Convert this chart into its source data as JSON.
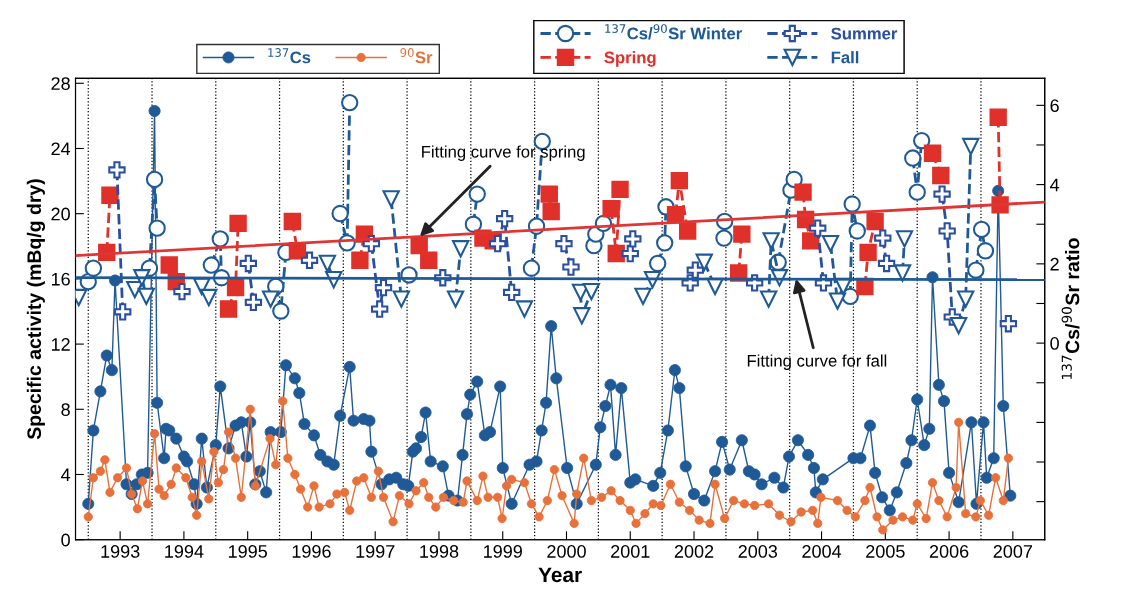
{
  "chart_data": {
    "type": "line",
    "xlabel": "Year",
    "ylabel": "Specific activity (mBq/g dry)",
    "y2label": "$^{137}$Cs/$^{90}$Sr ratio",
    "xlim": [
      1992.8,
      2008.0
    ],
    "ylim": [
      0,
      28.3
    ],
    "y2lim": [
      -4.96,
      6.68
    ],
    "xticks": [
      {
        "value": 1993.5,
        "label": "1993"
      },
      {
        "value": 1994.5,
        "label": "1994"
      },
      {
        "value": 1995.5,
        "label": "1995"
      },
      {
        "value": 1996.5,
        "label": "1996"
      },
      {
        "value": 1997.5,
        "label": "1997"
      },
      {
        "value": 1998.5,
        "label": "1998"
      },
      {
        "value": 1999.5,
        "label": "1999"
      },
      {
        "value": 2000.5,
        "label": "2000"
      },
      {
        "value": 2001.5,
        "label": "2001"
      },
      {
        "value": 2002.5,
        "label": "2002"
      },
      {
        "value": 2003.5,
        "label": "2003"
      },
      {
        "value": 2004.5,
        "label": "2004"
      },
      {
        "value": 2005.5,
        "label": "2005"
      },
      {
        "value": 2006.5,
        "label": "2006"
      },
      {
        "value": 2007.5,
        "label": "2007"
      }
    ],
    "yticks": [
      0,
      4,
      8,
      12,
      16,
      20,
      24,
      28
    ],
    "y2ticks": [
      {
        "value": -4,
        "label": null
      },
      {
        "value": -3,
        "label": null
      },
      {
        "value": -2,
        "label": null
      },
      {
        "value": -1,
        "label": null
      },
      0,
      {
        "value": 1,
        "label": null
      },
      2,
      {
        "value": 3,
        "label": null
      },
      4,
      {
        "value": 5,
        "label": null
      },
      6
    ],
    "legend": "top",
    "ref_lines": [
      {
        "axis": "x",
        "value": 1993,
        "color": "#000000",
        "line_style": "dotted"
      },
      {
        "axis": "x",
        "value": 1994,
        "color": "#000000",
        "line_style": "dotted"
      },
      {
        "axis": "x",
        "value": 1995,
        "color": "#000000",
        "line_style": "dotted"
      },
      {
        "axis": "x",
        "value": 1996,
        "color": "#000000",
        "line_style": "dotted"
      },
      {
        "axis": "x",
        "value": 1997,
        "color": "#000000",
        "line_style": "dotted"
      },
      {
        "axis": "x",
        "value": 1998,
        "color": "#000000",
        "line_style": "dotted"
      },
      {
        "axis": "x",
        "value": 1999,
        "color": "#000000",
        "line_style": "dotted"
      },
      {
        "axis": "x",
        "value": 2000,
        "color": "#000000",
        "line_style": "dotted"
      },
      {
        "axis": "x",
        "value": 2001,
        "color": "#000000",
        "line_style": "dotted"
      },
      {
        "axis": "x",
        "value": 2002,
        "color": "#000000",
        "line_style": "dotted"
      },
      {
        "axis": "x",
        "value": 2003,
        "color": "#000000",
        "line_style": "dotted"
      },
      {
        "axis": "x",
        "value": 2004,
        "color": "#000000",
        "line_style": "dotted"
      },
      {
        "axis": "x",
        "value": 2005,
        "color": "#000000",
        "line_style": "dotted"
      },
      {
        "axis": "x",
        "value": 2006,
        "color": "#000000",
        "line_style": "dotted"
      },
      {
        "axis": "x",
        "value": 2007,
        "color": "#000000",
        "line_style": "dotted"
      }
    ],
    "annotations": [
      {
        "text": "Fitting curve for spring",
        "x": 1998.2,
        "y": 18.6
      },
      {
        "text": "Fitting curve for fall",
        "x": 2004.1,
        "y": 16.0
      }
    ],
    "series": [
      {
        "name": "$^{137}$Cs",
        "color": "#1f5a96",
        "marker": "circle",
        "line_style": "solid",
        "x": [
          1993.0,
          1993.08,
          1993.19,
          1993.29,
          1993.37,
          1993.42,
          1993.6,
          1993.68,
          1993.76,
          1993.84,
          1993.93,
          1994.04,
          1994.08,
          1994.19,
          1994.22,
          1994.27,
          1994.38,
          1994.5,
          1994.55,
          1994.66,
          1994.7,
          1994.78,
          1994.86,
          1995.0,
          1995.07,
          1995.2,
          1995.31,
          1995.4,
          1995.48,
          1995.54,
          1995.62,
          1995.69,
          1995.79,
          1995.86,
          1996.02,
          1996.1,
          1996.24,
          1996.31,
          1996.39,
          1996.54,
          1996.64,
          1996.75,
          1996.85,
          1996.95,
          1997.1,
          1997.16,
          1997.32,
          1997.41,
          1997.44,
          1997.6,
          1997.72,
          1997.83,
          1997.94,
          1998.02,
          1998.09,
          1998.14,
          1998.22,
          1998.29,
          1998.37,
          1998.56,
          1998.65,
          1998.79,
          1998.87,
          1998.94,
          1998.99,
          1999.1,
          1999.22,
          1999.3,
          1999.46,
          1999.5,
          1999.64,
          1999.92,
          2000.03,
          2000.11,
          2000.18,
          2000.26,
          2000.34,
          2000.51,
          2000.66,
          2000.96,
          2001.03,
          2001.11,
          2001.19,
          2001.27,
          2001.36,
          2001.5,
          2001.58,
          2001.86,
          2001.97,
          2002.09,
          2002.2,
          2002.27,
          2002.37,
          2002.5,
          2002.66,
          2002.83,
          2002.94,
          2003.06,
          2003.25,
          2003.36,
          2003.45,
          2003.56,
          2003.76,
          2003.9,
          2003.99,
          2004.13,
          2004.29,
          2004.38,
          2004.41,
          2004.52,
          2005.0,
          2005.11,
          2005.26,
          2005.34,
          2005.45,
          2005.57,
          2005.68,
          2005.83,
          2005.91,
          2006.0,
          2006.11,
          2006.19,
          2006.24,
          2006.34,
          2006.42,
          2006.5,
          2006.65,
          2006.85,
          2006.93,
          2007.04,
          2007.09,
          2007.2,
          2007.27,
          2007.35,
          2007.46
        ],
        "values": [
          2.2,
          6.7,
          9.1,
          11.3,
          10.4,
          15.9,
          3.4,
          2.8,
          3.4,
          4.0,
          4.1,
          26.3,
          8.4,
          5.0,
          6.8,
          6.7,
          6.2,
          5.1,
          4.8,
          3.4,
          2.2,
          6.2,
          3.2,
          5.8,
          9.4,
          5.6,
          7.0,
          7.2,
          5.1,
          7.2,
          3.4,
          4.2,
          2.9,
          6.6,
          6.6,
          10.7,
          9.9,
          9.0,
          7.1,
          6.4,
          5.2,
          4.8,
          4.6,
          7.6,
          10.6,
          7.3,
          7.4,
          7.3,
          5.4,
          3.4,
          3.7,
          3.8,
          3.4,
          3.3,
          5.4,
          5.6,
          6.3,
          7.8,
          4.8,
          4.5,
          2.7,
          2.4,
          5.2,
          7.7,
          8.9,
          9.7,
          6.4,
          6.6,
          9.4,
          4.4,
          2.2,
          4.6,
          4.8,
          6.7,
          8.4,
          13.1,
          9.9,
          4.4,
          2.2,
          4.6,
          6.9,
          8.2,
          9.5,
          5.2,
          9.3,
          3.5,
          3.7,
          3.3,
          4.1,
          6.7,
          10.4,
          9.3,
          4.5,
          2.8,
          2.4,
          4.2,
          6.0,
          4.3,
          6.1,
          4.2,
          4.0,
          3.4,
          3.8,
          3.2,
          5.1,
          6.1,
          5.2,
          4.4,
          2.9,
          3.7,
          5.0,
          5.0,
          7.0,
          4.1,
          2.6,
          1.8,
          2.9,
          4.7,
          6.1,
          8.6,
          5.8,
          6.8,
          16.1,
          9.5,
          8.5,
          4.1,
          2.3,
          7.2,
          2.2,
          7.2,
          3.8,
          5.0,
          21.4,
          8.2,
          2.7
        ]
      },
      {
        "name": "$^{90}$Sr",
        "color": "#e8703a",
        "marker": "circle",
        "line_style": "solid",
        "x": [
          1993.0,
          1993.08,
          1993.19,
          1993.26,
          1993.34,
          1993.46,
          1993.6,
          1993.68,
          1993.77,
          1993.85,
          1993.93,
          1994.04,
          1994.11,
          1994.19,
          1994.3,
          1994.38,
          1994.53,
          1994.63,
          1994.7,
          1994.78,
          1994.89,
          1994.97,
          1995.04,
          1995.12,
          1995.2,
          1995.31,
          1995.4,
          1995.54,
          1995.62,
          1995.85,
          1995.94,
          1996.05,
          1996.13,
          1996.24,
          1996.33,
          1996.44,
          1996.54,
          1996.62,
          1996.79,
          1996.9,
          1997.02,
          1997.1,
          1997.21,
          1997.32,
          1997.44,
          1997.55,
          1997.63,
          1997.78,
          1997.88,
          1998.03,
          1998.14,
          1998.26,
          1998.34,
          1998.45,
          1998.57,
          1998.73,
          1998.88,
          1998.94,
          1999.1,
          1999.19,
          1999.27,
          1999.42,
          1999.49,
          1999.56,
          1999.64,
          1999.84,
          1999.95,
          2000.07,
          2000.2,
          2000.31,
          2000.43,
          2000.62,
          2000.66,
          2000.77,
          2000.89,
          2001.05,
          2001.2,
          2001.34,
          2001.5,
          2001.59,
          2001.73,
          2001.86,
          2001.98,
          2002.13,
          2002.27,
          2002.43,
          2002.58,
          2002.75,
          2002.83,
          2002.98,
          2003.12,
          2003.29,
          2003.45,
          2003.67,
          2003.84,
          2004.02,
          2004.18,
          2004.36,
          2004.44,
          2004.49,
          2004.75,
          2004.9,
          2005.03,
          2005.18,
          2005.26,
          2005.37,
          2005.46,
          2005.62,
          2005.77,
          2005.93,
          2006.0,
          2006.14,
          2006.24,
          2006.34,
          2006.47,
          2006.61,
          2006.65,
          2006.76,
          2006.92,
          2006.99,
          2007.12,
          2007.23,
          2007.35,
          2007.43
        ],
        "values": [
          1.4,
          3.8,
          4.2,
          4.9,
          2.9,
          3.8,
          4.4,
          2.8,
          1.9,
          3.6,
          2.2,
          6.5,
          3.1,
          2.7,
          3.4,
          4.4,
          3.8,
          2.6,
          1.5,
          4.8,
          2.5,
          5.4,
          3.5,
          4.3,
          6.6,
          5.0,
          2.6,
          8.0,
          3.3,
          6.2,
          4.6,
          8.5,
          5.0,
          4.0,
          3.1,
          2.0,
          3.3,
          2.0,
          2.2,
          2.8,
          2.9,
          1.8,
          3.6,
          3.8,
          2.6,
          4.2,
          2.6,
          1.1,
          2.7,
          2.2,
          3.0,
          3.5,
          2.6,
          2.0,
          2.6,
          2.4,
          2.3,
          3.6,
          2.4,
          3.9,
          2.6,
          2.6,
          1.3,
          3.3,
          3.7,
          3.5,
          2.2,
          1.4,
          2.4,
          4.3,
          2.7,
          1.0,
          2.8,
          5.0,
          2.4,
          2.6,
          3.0,
          2.4,
          1.8,
          1.0,
          1.6,
          2.2,
          2.1,
          3.4,
          2.3,
          1.8,
          1.2,
          1.0,
          3.4,
          1.3,
          2.4,
          2.2,
          2.1,
          2.2,
          1.5,
          1.1,
          1.7,
          1.8,
          1.0,
          2.6,
          2.4,
          1.8,
          1.4,
          2.4,
          3.2,
          1.4,
          0.6,
          1.2,
          1.4,
          1.2,
          2.2,
          1.3,
          3.5,
          2.4,
          1.4,
          3.2,
          7.2,
          1.6,
          1.4,
          2.4,
          1.5,
          3.8,
          2.4,
          5.0
        ]
      },
      {
        "name": "$^{137}$Cs/$^{90}$Sr Winter",
        "color": "#1f5a96",
        "axis": "y2",
        "marker": "circle",
        "line_style": "dashed",
        "x": [
          1993.0,
          1993.08,
          1993.5,
          1993.96,
          1994.04,
          1994.08,
          1994.5,
          1994.93,
          1995.07,
          1995.09,
          1995.5,
          1995.94,
          1996.02,
          1996.1,
          1996.5,
          1996.95,
          1997.06,
          1997.1,
          1997.5,
          1998.03,
          1998.5,
          1999.04,
          1999.1,
          1999.5,
          1999.95,
          2000.03,
          2000.12,
          2000.5,
          2000.93,
          2000.96,
          2001.08,
          2001.5,
          2001.93,
          2002.04,
          2002.06,
          2002.5,
          2002.97,
          2002.98,
          2003.4,
          2003.82,
          2004.02,
          2004.07,
          2004.5,
          2004.95,
          2004.98,
          2005.06,
          2005.5,
          2005.93,
          2006.0,
          2006.07,
          2006.5,
          2006.92,
          2007.01,
          2007.07
        ],
        "values": [
          1.55,
          1.89,
          null,
          1.89,
          4.13,
          2.9,
          null,
          1.97,
          2.63,
          1.65,
          null,
          1.43,
          0.81,
          2.29,
          null,
          3.27,
          2.53,
          6.07,
          null,
          1.72,
          null,
          3.0,
          3.76,
          null,
          1.89,
          2.95,
          5.09,
          null,
          2.46,
          2.75,
          3.02,
          null,
          2.01,
          2.53,
          3.44,
          null,
          2.65,
          3.07,
          null,
          2.04,
          3.86,
          4.13,
          null,
          1.18,
          3.51,
          2.83,
          null,
          4.67,
          3.81,
          5.11,
          null,
          1.84,
          2.87,
          2.33
        ]
      },
      {
        "name": "Spring",
        "color": "#e0302a",
        "axis": "y2",
        "marker": "square",
        "line_style": "dashed",
        "x": [
          1993.29,
          1993.34,
          1993.8,
          1994.27,
          1994.38,
          1994.8,
          1995.2,
          1995.31,
          1995.35,
          1995.8,
          1996.2,
          1996.28,
          1996.8,
          1997.26,
          1997.33,
          1997.8,
          1998.19,
          1998.34,
          1998.8,
          1999.19,
          1999.35,
          1999.8,
          2000.23,
          2000.26,
          2000.8,
          2001.2,
          2001.28,
          2001.34,
          2001.8,
          2002.21,
          2002.27,
          2002.4,
          2002.8,
          2003.2,
          2003.25,
          2003.8,
          2004.21,
          2004.25,
          2004.33,
          2004.8,
          2005.18,
          2005.23,
          2005.34,
          2005.8,
          2006.24,
          2006.37,
          2006.8,
          2007.27,
          2007.3
        ],
        "values": [
          2.29,
          3.73,
          null,
          1.97,
          1.55,
          null,
          0.86,
          1.4,
          3.02,
          null,
          3.07,
          2.33,
          null,
          2.09,
          2.75,
          null,
          2.46,
          2.09,
          null,
          2.65,
          2.58,
          null,
          3.76,
          3.32,
          null,
          3.39,
          2.26,
          3.88,
          null,
          3.24,
          4.1,
          2.83,
          null,
          1.77,
          2.75,
          null,
          3.81,
          3.12,
          2.58,
          null,
          1.43,
          2.29,
          3.07,
          null,
          4.79,
          4.23,
          null,
          5.7,
          3.49
        ]
      },
      {
        "name": "Summer",
        "color": "#2a4fa0",
        "axis": "y2",
        "marker": "cross",
        "line_style": "dashed",
        "x": [
          1993.45,
          1993.54,
          1994.0,
          1994.47,
          1995.0,
          1995.51,
          1995.59,
          1996.0,
          1996.47,
          1997.0,
          1997.44,
          1997.57,
          1997.63,
          1998.0,
          1998.56,
          1999.0,
          1999.42,
          1999.53,
          1999.64,
          2000.0,
          2000.46,
          2000.57,
          2001.0,
          2001.5,
          2001.54,
          2002.0,
          2002.44,
          2002.52,
          2003.0,
          2003.45,
          2004.0,
          2004.44,
          2004.53,
          2005.0,
          2005.46,
          2005.52,
          2006.0,
          2006.39,
          2006.47,
          2006.55,
          2007.0,
          2007.43
        ],
        "values": [
          4.37,
          0.79,
          null,
          1.3,
          null,
          2.01,
          1.03,
          null,
          2.09,
          null,
          2.51,
          0.86,
          1.4,
          null,
          1.65,
          null,
          2.51,
          3.14,
          1.28,
          null,
          2.51,
          1.92,
          null,
          2.26,
          2.63,
          null,
          1.52,
          1.84,
          null,
          1.52,
          null,
          2.9,
          1.52,
          null,
          2.65,
          2.01,
          null,
          3.76,
          2.83,
          0.66,
          null,
          0.49
        ]
      },
      {
        "name": "Fall",
        "color": "#1f5a96",
        "axis": "y2",
        "marker": "triangle",
        "line_style": "dashed",
        "x": [
          1992.85,
          1993.3,
          1993.73,
          1993.84,
          1993.91,
          1994.3,
          1994.78,
          1994.89,
          1995.3,
          1995.86,
          1996.3,
          1996.75,
          1996.85,
          1997.3,
          1997.75,
          1997.91,
          1998.3,
          1998.76,
          1998.84,
          1999.3,
          1999.84,
          2000.3,
          2000.72,
          2000.74,
          2000.89,
          2001.3,
          2001.7,
          2001.85,
          2002.3,
          2002.66,
          2002.83,
          2003.3,
          2003.67,
          2003.71,
          2003.84,
          2004.3,
          2004.64,
          2004.75,
          2004.84,
          2005.3,
          2005.77,
          2005.8,
          2006.3,
          2006.65,
          2006.76,
          2006.84
        ],
        "values": [
          1.15,
          null,
          1.35,
          1.65,
          1.18,
          null,
          1.43,
          1.15,
          null,
          1.11,
          null,
          2.01,
          1.6,
          null,
          3.64,
          1.11,
          null,
          1.11,
          2.38,
          null,
          0.86,
          null,
          1.28,
          0.69,
          1.3,
          null,
          1.18,
          1.6,
          null,
          2.04,
          1.43,
          null,
          1.11,
          2.58,
          1.65,
          null,
          2.51,
          1.06,
          1.43,
          null,
          1.77,
          2.63,
          null,
          0.44,
          1.11,
          4.96
        ]
      },
      {
        "color": "#e03535",
        "axis": "y2",
        "marker": "none",
        "line_style": "solid",
        "x": [
          1992.8,
          2008.0
        ],
        "values": [
          2.21,
          3.56
        ]
      },
      {
        "color": "#1f5a96",
        "axis": "y2",
        "marker": "none",
        "line_style": "solid",
        "x": [
          1992.8,
          2008.0
        ],
        "values": [
          1.65,
          1.6
        ]
      }
    ]
  }
}
